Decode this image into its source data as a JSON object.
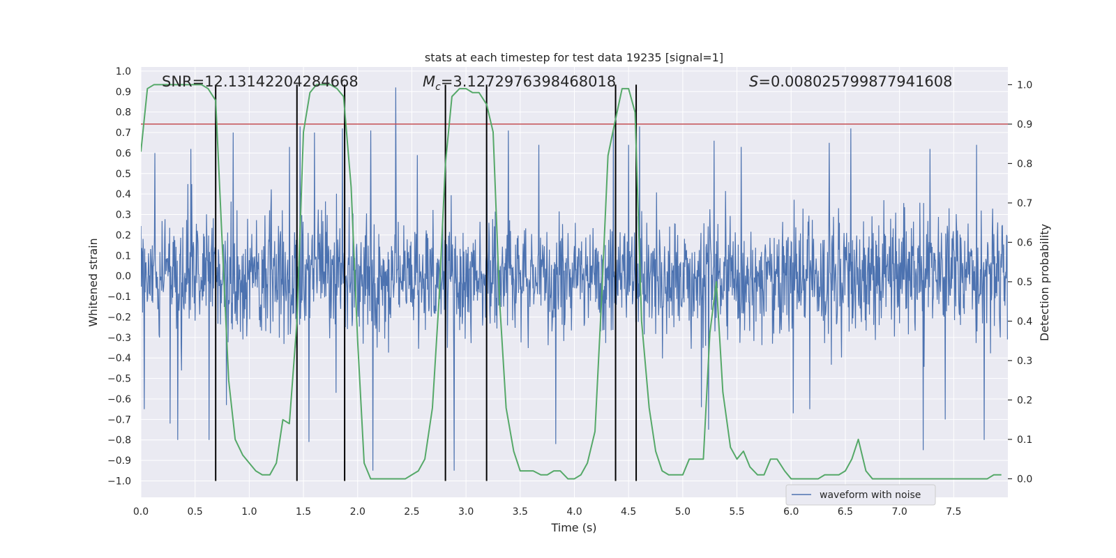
{
  "chart_data": {
    "type": "line",
    "title": "stats at each timestep for test data 19235 [signal=1]",
    "xlabel": "Time (s)",
    "ylabel": "Whitened strain",
    "y2label": "Detection probability",
    "xlim": [
      0.0,
      8.0
    ],
    "ylim": [
      -1.08,
      1.02
    ],
    "y2lim": [
      -0.047,
      1.045
    ],
    "x_ticks": [
      0.0,
      0.5,
      1.0,
      1.5,
      2.0,
      2.5,
      3.0,
      3.5,
      4.0,
      4.5,
      5.0,
      5.5,
      6.0,
      6.5,
      7.0,
      7.5
    ],
    "y_ticks": [
      -1.0,
      -0.9,
      -0.8,
      -0.7,
      -0.6,
      -0.5,
      -0.4,
      -0.3,
      -0.2,
      -0.1,
      0.0,
      0.1,
      0.2,
      0.3,
      0.4,
      0.5,
      0.6,
      0.7,
      0.8,
      0.9,
      1.0
    ],
    "y2_ticks": [
      0.0,
      0.1,
      0.2,
      0.3,
      0.4,
      0.5,
      0.6,
      0.7,
      0.8,
      0.9,
      1.0
    ],
    "x_tick_labels": [
      "0.0",
      "0.5",
      "1.0",
      "1.5",
      "2.0",
      "2.5",
      "3.0",
      "3.5",
      "4.0",
      "4.5",
      "5.0",
      "5.5",
      "6.0",
      "6.5",
      "7.0",
      "7.5"
    ],
    "y_tick_labels": [
      "−1.0",
      "−0.9",
      "−0.8",
      "−0.7",
      "−0.6",
      "−0.5",
      "−0.4",
      "−0.3",
      "−0.2",
      "−0.1",
      "0.0",
      "0.1",
      "0.2",
      "0.3",
      "0.4",
      "0.5",
      "0.6",
      "0.7",
      "0.8",
      "0.9",
      "1.0"
    ],
    "y2_tick_labels": [
      "0.0",
      "0.1",
      "0.2",
      "0.3",
      "0.4",
      "0.5",
      "0.6",
      "0.7",
      "0.8",
      "0.9",
      "1.0"
    ],
    "grid": true,
    "legend": {
      "position": "lower-right",
      "entries": [
        "waveform with noise"
      ]
    },
    "annotations": {
      "snr": "SNR=12.13142204284668",
      "mc_symbol": "M",
      "mc_sub": "c",
      "mc_value": "=3.1272976398468018",
      "s_symbol": "S",
      "s_value": "=0.008025799877941608"
    },
    "waveform": {
      "name": "waveform with noise",
      "axis": "left",
      "color": "#4c72b0",
      "sample_rate_hz": 256,
      "duration_s": 8.0,
      "envelope_quantiles": [
        -0.42,
        0.42
      ],
      "peaks": [
        {
          "x": 0.03,
          "y": -0.65
        },
        {
          "x": 0.13,
          "y": 0.6
        },
        {
          "x": 0.27,
          "y": -0.72
        },
        {
          "x": 0.34,
          "y": -0.8
        },
        {
          "x": 0.46,
          "y": 0.62
        },
        {
          "x": 0.63,
          "y": -0.8
        },
        {
          "x": 0.79,
          "y": -0.63
        },
        {
          "x": 0.85,
          "y": 0.7
        },
        {
          "x": 1.37,
          "y": 0.63
        },
        {
          "x": 1.47,
          "y": 0.73
        },
        {
          "x": 1.55,
          "y": -0.81
        },
        {
          "x": 1.6,
          "y": 0.7
        },
        {
          "x": 1.8,
          "y": -0.57
        },
        {
          "x": 1.86,
          "y": 0.72
        },
        {
          "x": 2.12,
          "y": 0.71
        },
        {
          "x": 2.14,
          "y": -0.95
        },
        {
          "x": 2.35,
          "y": 0.92
        },
        {
          "x": 2.89,
          "y": -0.95
        },
        {
          "x": 2.55,
          "y": 0.59
        },
        {
          "x": 3.19,
          "y": 0.72
        },
        {
          "x": 3.39,
          "y": 0.71
        },
        {
          "x": 3.67,
          "y": 0.64
        },
        {
          "x": 3.83,
          "y": -0.82
        },
        {
          "x": 4.36,
          "y": 0.72
        },
        {
          "x": 4.5,
          "y": 0.64
        },
        {
          "x": 4.6,
          "y": 0.73
        },
        {
          "x": 5.24,
          "y": -0.75
        },
        {
          "x": 5.17,
          "y": -0.64
        },
        {
          "x": 5.29,
          "y": 0.66
        },
        {
          "x": 5.54,
          "y": 0.63
        },
        {
          "x": 6.02,
          "y": -0.67
        },
        {
          "x": 6.17,
          "y": -0.65
        },
        {
          "x": 6.35,
          "y": 0.65
        },
        {
          "x": 6.55,
          "y": 0.72
        },
        {
          "x": 7.22,
          "y": -0.85
        },
        {
          "x": 7.28,
          "y": 0.62
        },
        {
          "x": 7.42,
          "y": -0.7
        },
        {
          "x": 7.71,
          "y": 0.64
        },
        {
          "x": 7.78,
          "y": -0.8
        }
      ]
    },
    "detection_probability": {
      "axis": "right",
      "color": "#55a868",
      "x": [
        0.0,
        0.06,
        0.12,
        0.19,
        0.25,
        0.31,
        0.37,
        0.44,
        0.5,
        0.56,
        0.62,
        0.69,
        0.75,
        0.81,
        0.87,
        0.94,
        1.0,
        1.06,
        1.12,
        1.19,
        1.25,
        1.31,
        1.37,
        1.44,
        1.5,
        1.56,
        1.62,
        1.69,
        1.75,
        1.81,
        1.87,
        1.94,
        2.0,
        2.06,
        2.12,
        2.19,
        2.25,
        2.31,
        2.37,
        2.44,
        2.5,
        2.56,
        2.62,
        2.69,
        2.75,
        2.81,
        2.87,
        2.94,
        3.0,
        3.06,
        3.12,
        3.19,
        3.25,
        3.31,
        3.37,
        3.44,
        3.5,
        3.56,
        3.62,
        3.69,
        3.75,
        3.81,
        3.87,
        3.94,
        4.0,
        4.06,
        4.12,
        4.19,
        4.25,
        4.31,
        4.37,
        4.44,
        4.5,
        4.56,
        4.62,
        4.69,
        4.75,
        4.81,
        4.87,
        4.94,
        5.0,
        5.06,
        5.12,
        5.19,
        5.25,
        5.31,
        5.37,
        5.44,
        5.5,
        5.56,
        5.62,
        5.69,
        5.75,
        5.81,
        5.87,
        5.94,
        6.0,
        6.06,
        6.12,
        6.19,
        6.25,
        6.31,
        6.37,
        6.44,
        6.5,
        6.56,
        6.62,
        6.69,
        6.75,
        6.81,
        6.87,
        6.94,
        7.0,
        7.06,
        7.12,
        7.19,
        7.25,
        7.31,
        7.37,
        7.44,
        7.5,
        7.56,
        7.62,
        7.69,
        7.75,
        7.81,
        7.87,
        7.94
      ],
      "values": [
        0.83,
        0.99,
        1.0,
        1.0,
        1.0,
        1.0,
        1.0,
        1.0,
        1.0,
        1.0,
        0.99,
        0.96,
        0.6,
        0.25,
        0.1,
        0.06,
        0.04,
        0.02,
        0.01,
        0.01,
        0.04,
        0.15,
        0.14,
        0.4,
        0.88,
        0.98,
        1.0,
        1.0,
        1.0,
        0.99,
        0.97,
        0.74,
        0.35,
        0.04,
        0.0,
        0.0,
        0.0,
        0.0,
        0.0,
        0.0,
        0.01,
        0.02,
        0.05,
        0.18,
        0.45,
        0.8,
        0.97,
        0.99,
        0.99,
        0.98,
        0.98,
        0.95,
        0.88,
        0.45,
        0.18,
        0.07,
        0.02,
        0.02,
        0.02,
        0.01,
        0.01,
        0.02,
        0.02,
        0.0,
        0.0,
        0.01,
        0.04,
        0.12,
        0.45,
        0.82,
        0.9,
        0.99,
        0.99,
        0.93,
        0.4,
        0.18,
        0.07,
        0.02,
        0.01,
        0.01,
        0.01,
        0.05,
        0.05,
        0.05,
        0.37,
        0.5,
        0.22,
        0.08,
        0.05,
        0.07,
        0.03,
        0.01,
        0.01,
        0.05,
        0.05,
        0.02,
        0.0,
        0.0,
        0.0,
        0.0,
        0.0,
        0.01,
        0.01,
        0.01,
        0.02,
        0.05,
        0.1,
        0.02,
        0.0,
        0.0,
        0.0,
        0.0,
        0.0,
        0.0,
        0.0,
        0.0,
        0.0,
        0.0,
        0.0,
        0.0,
        0.0,
        0.0,
        0.0,
        0.0,
        0.0,
        0.0,
        0.01,
        0.01
      ]
    },
    "threshold": {
      "axis": "right",
      "value": 0.9,
      "color": "#c44e52"
    },
    "vertical_lines": [
      0.69,
      1.44,
      1.88,
      2.81,
      3.19,
      4.38,
      4.57
    ],
    "vertical_lines_color": "#000000",
    "colors": {
      "plot_background": "#eaeaf2",
      "grid": "#ffffff"
    }
  }
}
